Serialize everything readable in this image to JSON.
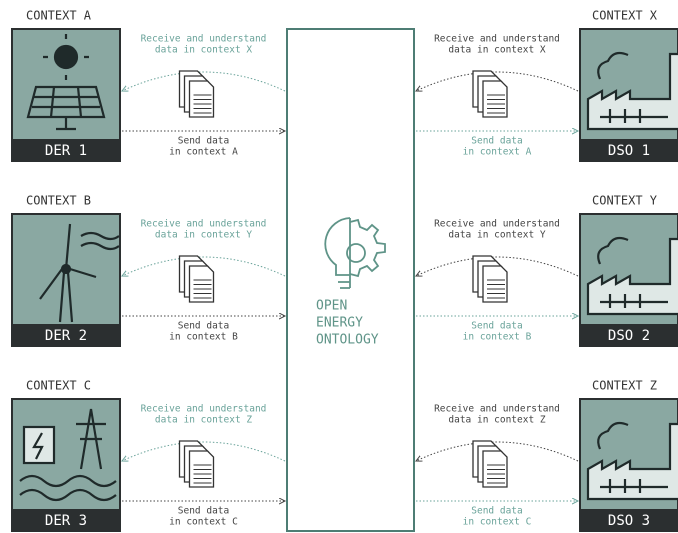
{
  "left": [
    {
      "context": "CONTEXT A",
      "label": "DER 1",
      "receive": [
        "Receive and understand",
        "data in context X"
      ],
      "send": [
        "Send data",
        "in context A"
      ]
    },
    {
      "context": "CONTEXT B",
      "label": "DER 2",
      "receive": [
        "Receive and understand",
        "data in context Y"
      ],
      "send": [
        "Send data",
        "in context B"
      ]
    },
    {
      "context": "CONTEXT C",
      "label": "DER 3",
      "receive": [
        "Receive and understand",
        "data in context Z"
      ],
      "send": [
        "Send data",
        "in context C"
      ]
    }
  ],
  "right": [
    {
      "context": "CONTEXT X",
      "label": "DSO 1",
      "receive": [
        "Receive and understand",
        "data in context X"
      ],
      "send": [
        "Send data",
        "in context A"
      ]
    },
    {
      "context": "CONTEXT Y",
      "label": "DSO 2",
      "receive": [
        "Receive and understand",
        "data in context Y"
      ],
      "send": [
        "Send data",
        "in context B"
      ]
    },
    {
      "context": "CONTEXT Z",
      "label": "DSO 3",
      "receive": [
        "Receive and understand",
        "data in context Z"
      ],
      "send": [
        "Send data",
        "in context C"
      ]
    }
  ],
  "center": [
    "OPEN",
    "ENERGY",
    "ONTOLOGY"
  ]
}
